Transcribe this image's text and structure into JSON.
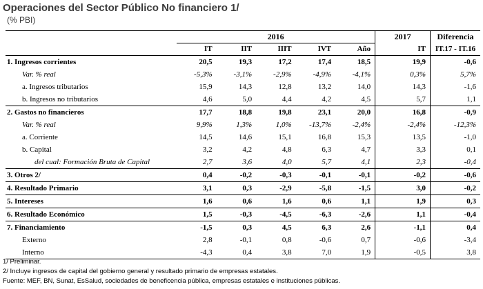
{
  "title": "Operaciones del Sector Público No financiero 1/",
  "subtitle": "(% PBI)",
  "header": {
    "year_2016": "2016",
    "year_2017": "2017",
    "diff": "Diferencia",
    "cols": [
      "IT",
      "IIT",
      "IIIT",
      "IVT",
      "Año",
      "IT",
      "IT.17 - IT.16"
    ]
  },
  "rows": [
    {
      "label": "1. Ingresos corrientes",
      "values": [
        "20,5",
        "19,3",
        "17,2",
        "17,4",
        "18,5",
        "19,9",
        "-0,6"
      ]
    },
    {
      "label": "Var. % real",
      "values": [
        "-5,3%",
        "-3,1%",
        "-2,9%",
        "-4,9%",
        "-4,1%",
        "0,3%",
        "5,7%"
      ]
    },
    {
      "label": "a. Ingresos tributarios",
      "values": [
        "15,9",
        "14,3",
        "12,8",
        "13,2",
        "14,0",
        "14,3",
        "-1,6"
      ]
    },
    {
      "label": "b. Ingresos no tributarios",
      "values": [
        "4,6",
        "5,0",
        "4,4",
        "4,2",
        "4,5",
        "5,7",
        "1,1"
      ]
    },
    {
      "label": "2. Gastos no financieros",
      "values": [
        "17,7",
        "18,8",
        "19,8",
        "23,1",
        "20,0",
        "16,8",
        "-0,9"
      ]
    },
    {
      "label": "Var. % real",
      "values": [
        "9,9%",
        "1,3%",
        "1,0%",
        "-13,7%",
        "-2,4%",
        "-2,4%",
        "-12,3%"
      ]
    },
    {
      "label": "a. Corriente",
      "values": [
        "14,5",
        "14,6",
        "15,1",
        "16,8",
        "15,3",
        "13,5",
        "-1,0"
      ]
    },
    {
      "label": "b. Capital",
      "values": [
        "3,2",
        "4,2",
        "4,8",
        "6,3",
        "4,7",
        "3,3",
        "0,1"
      ]
    },
    {
      "label": "del cual: Formación Bruta de Capital",
      "values": [
        "2,7",
        "3,6",
        "4,0",
        "5,7",
        "4,1",
        "2,3",
        "-0,4"
      ]
    },
    {
      "label": "3. Otros 2/",
      "values": [
        "0,4",
        "-0,2",
        "-0,3",
        "-0,1",
        "-0,1",
        "-0,2",
        "-0,6"
      ]
    },
    {
      "label": "4. Resultado Primario",
      "values": [
        "3,1",
        "0,3",
        "-2,9",
        "-5,8",
        "-1,5",
        "3,0",
        "-0,2"
      ]
    },
    {
      "label": "5. Intereses",
      "values": [
        "1,6",
        "0,6",
        "1,6",
        "0,6",
        "1,1",
        "1,9",
        "0,3"
      ]
    },
    {
      "label": "6. Resultado Económico",
      "values": [
        "1,5",
        "-0,3",
        "-4,5",
        "-6,3",
        "-2,6",
        "1,1",
        "-0,4"
      ]
    },
    {
      "label": "7. Financiamiento",
      "values": [
        "-1,5",
        "0,3",
        "4,5",
        "6,3",
        "2,6",
        "-1,1",
        "0,4"
      ]
    },
    {
      "label": "Externo",
      "values": [
        "2,8",
        "-0,1",
        "0,8",
        "-0,6",
        "0,7",
        "-0,6",
        "-3,4"
      ]
    },
    {
      "label": "Interno",
      "values": [
        "-4,3",
        "0,4",
        "3,8",
        "7,0",
        "1,9",
        "-0,5",
        "3,8"
      ]
    }
  ],
  "notes": [
    "1/ Preliminar.",
    "2/ Incluye ingresos de capital del gobierno general y resultado primario de empresas estatales.",
    "Fuente: MEF, BN, Sunat, EsSalud, sociedades de beneficencia pública, empresas estatales e instituciones públicas."
  ]
}
